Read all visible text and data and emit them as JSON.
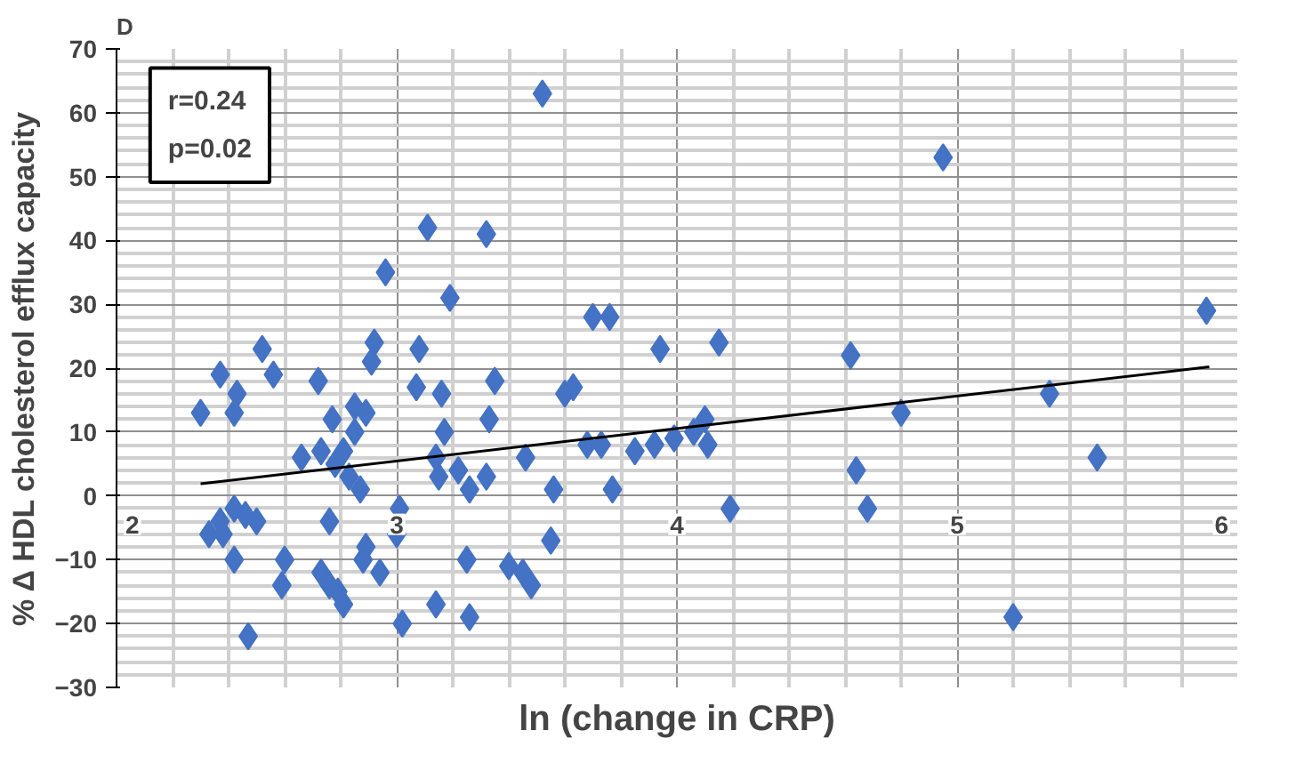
{
  "chart_data": {
    "type": "scatter",
    "title": "D",
    "xlabel": "ln (change in CRP)",
    "ylabel": "% Δ HDL cholesterol efflux capacity",
    "annotations": [
      "r=0.24",
      "p=0.02"
    ],
    "xlim": [
      2,
      6
    ],
    "xticks": [
      2,
      3,
      4,
      5,
      6
    ],
    "ylim": [
      -30,
      70
    ],
    "yticks": [
      -30,
      -20,
      -10,
      0,
      10,
      20,
      30,
      40,
      50,
      60,
      70
    ],
    "grid": true,
    "series": [
      {
        "marker": "diamond",
        "color": "#4472c4",
        "x": [
          3.52,
          3.11,
          3.32,
          2.96,
          3.19,
          3.7,
          3.76,
          2.52,
          2.92,
          3.08,
          3.94,
          4.95,
          5.89,
          4.15,
          4.62,
          2.91,
          2.37,
          2.56,
          2.72,
          2.43,
          2.3,
          2.42,
          3.07,
          3.16,
          3.35,
          3.6,
          3.63,
          3.33,
          2.77,
          2.85,
          2.89,
          2.85,
          3.17,
          2.66,
          2.73,
          2.81,
          2.78,
          3.14,
          3.15,
          3.22,
          3.26,
          3.32,
          2.83,
          2.87,
          3.46,
          3.56,
          3.68,
          3.73,
          3.77,
          3.85,
          3.92,
          3.99,
          3.01,
          2.33,
          2.37,
          2.42,
          2.46,
          2.5,
          2.38,
          2.76,
          3.0,
          2.89,
          2.88,
          2.94,
          2.42,
          2.6,
          2.73,
          2.76,
          2.79,
          2.81,
          2.59,
          3.25,
          3.4,
          3.45,
          3.48,
          3.55,
          3.14,
          3.26,
          3.02,
          2.47,
          4.1,
          4.06,
          4.11,
          4.8,
          5.33,
          4.64,
          5.5,
          4.19,
          4.68,
          5.2
        ],
        "values": [
          63,
          42,
          41,
          35,
          31,
          28,
          28,
          23,
          24,
          23,
          23,
          53,
          29,
          24,
          22,
          21,
          19,
          19,
          18,
          16,
          13,
          13,
          17,
          16,
          18,
          16,
          17,
          12,
          12,
          14,
          13,
          10,
          10,
          6,
          7,
          7,
          5,
          6,
          3,
          4,
          1,
          3,
          3,
          1,
          6,
          1,
          8,
          8,
          1,
          7,
          8,
          9,
          -2,
          -6,
          -4,
          -2,
          -3,
          -4,
          -6,
          -4,
          -6,
          -8,
          -10,
          -12,
          -10,
          -10,
          -12,
          -14,
          -15,
          -17,
          -14,
          -10,
          -11,
          -12,
          -14,
          -7,
          -17,
          -19,
          -20,
          -22,
          12,
          10,
          8,
          13,
          16,
          4,
          6,
          -2,
          -2,
          -19
        ]
      },
      {
        "type": "line",
        "marker": "none",
        "color": "#000000",
        "x": [
          2.3,
          5.9
        ],
        "values": [
          1.9,
          20.2
        ]
      }
    ]
  }
}
